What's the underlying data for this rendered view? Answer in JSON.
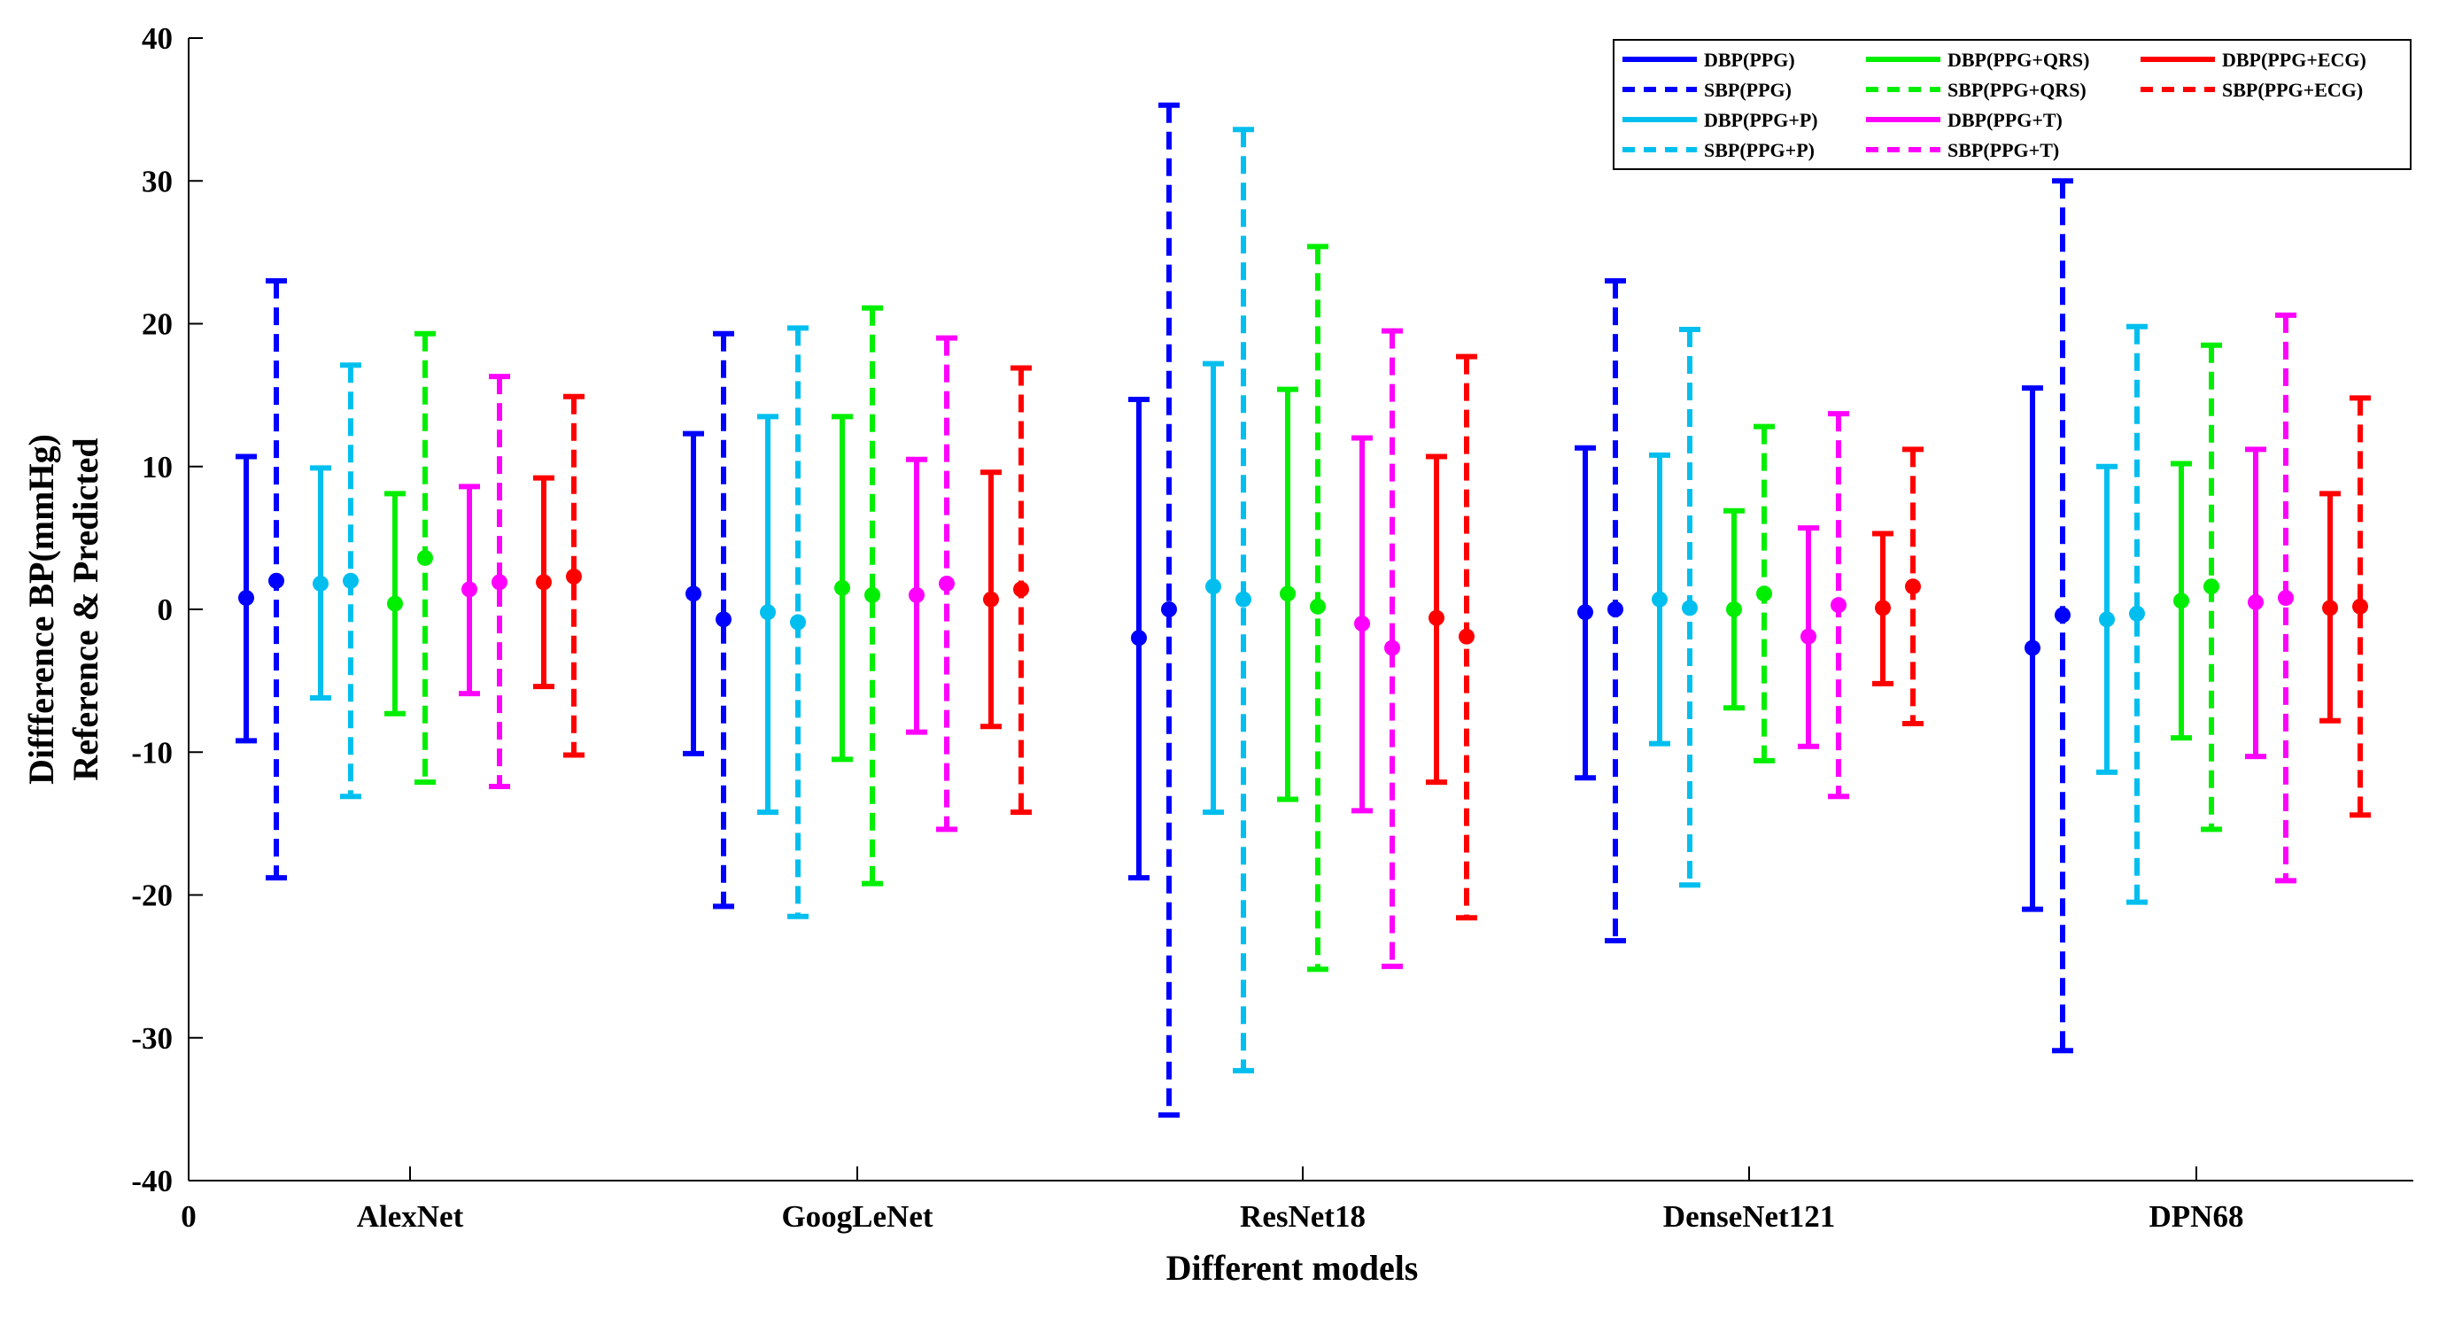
{
  "chart_data": {
    "type": "errorbar",
    "title": "",
    "xlabel": "Different models",
    "ylabel_lines": [
      "Diffference BP(mmHg)",
      "Reference & Predicted"
    ],
    "ylim": [
      -40,
      40
    ],
    "yticks": [
      -40,
      -30,
      -20,
      -10,
      0,
      10,
      20,
      30,
      40
    ],
    "x_origin_label": "0",
    "grid": false,
    "legend_position": "top-right",
    "categories": [
      "AlexNet",
      "GoogLeNet",
      "ResNet18",
      "DenseNet121",
      "DPN68"
    ],
    "series": [
      {
        "name": "DBP(PPG)",
        "color": "#0000ff",
        "dashed": false,
        "mean": [
          0.8,
          1.1,
          -2.0,
          -0.2,
          -2.7
        ],
        "upper": [
          10.7,
          12.3,
          14.7,
          11.3,
          15.5
        ],
        "lower": [
          -9.2,
          -10.1,
          -18.8,
          -11.8,
          -21.0
        ]
      },
      {
        "name": "SBP(PPG)",
        "color": "#0000ff",
        "dashed": true,
        "mean": [
          2.0,
          -0.7,
          0.0,
          0.0,
          -0.4
        ],
        "upper": [
          23.0,
          19.3,
          35.3,
          23.0,
          30.0
        ],
        "lower": [
          -18.8,
          -20.8,
          -35.4,
          -23.2,
          -30.9
        ]
      },
      {
        "name": "DBP(PPG+P)",
        "color": "#00bfef",
        "dashed": false,
        "mean": [
          1.8,
          -0.2,
          1.6,
          0.7,
          -0.7
        ],
        "upper": [
          9.9,
          13.5,
          17.2,
          10.8,
          10.0
        ],
        "lower": [
          -6.2,
          -14.2,
          -14.2,
          -9.4,
          -11.4
        ]
      },
      {
        "name": "SBP(PPG+P)",
        "color": "#00bfef",
        "dashed": true,
        "mean": [
          2.0,
          -0.9,
          0.7,
          0.1,
          -0.3
        ],
        "upper": [
          17.1,
          19.7,
          33.6,
          19.6,
          19.8
        ],
        "lower": [
          -13.1,
          -21.5,
          -32.3,
          -19.3,
          -20.5
        ]
      },
      {
        "name": "DBP(PPG+QRS)",
        "color": "#00ee00",
        "dashed": false,
        "mean": [
          0.4,
          1.5,
          1.1,
          0.0,
          0.6
        ],
        "upper": [
          8.1,
          13.5,
          15.4,
          6.9,
          10.2
        ],
        "lower": [
          -7.3,
          -10.5,
          -13.3,
          -6.9,
          -9.0
        ]
      },
      {
        "name": "SBP(PPG+QRS)",
        "color": "#00ee00",
        "dashed": true,
        "mean": [
          3.6,
          1.0,
          0.2,
          1.1,
          1.6
        ],
        "upper": [
          19.3,
          21.1,
          25.4,
          12.8,
          18.5
        ],
        "lower": [
          -12.1,
          -19.2,
          -25.2,
          -10.6,
          -15.4
        ]
      },
      {
        "name": "DBP(PPG+T)",
        "color": "#ff00ff",
        "dashed": false,
        "mean": [
          1.4,
          1.0,
          -1.0,
          -1.9,
          0.5
        ],
        "upper": [
          8.6,
          10.5,
          12.0,
          5.7,
          11.2
        ],
        "lower": [
          -5.9,
          -8.6,
          -14.1,
          -9.6,
          -10.3
        ]
      },
      {
        "name": "SBP(PPG+T)",
        "color": "#ff00ff",
        "dashed": true,
        "mean": [
          1.9,
          1.8,
          -2.7,
          0.3,
          0.8
        ],
        "upper": [
          16.3,
          19.0,
          19.5,
          13.7,
          20.6
        ],
        "lower": [
          -12.4,
          -15.4,
          -25.0,
          -13.1,
          -19.0
        ]
      },
      {
        "name": "DBP(PPG+ECG)",
        "color": "#ff0000",
        "dashed": false,
        "mean": [
          1.9,
          0.7,
          -0.6,
          0.1,
          0.1
        ],
        "upper": [
          9.2,
          9.6,
          10.7,
          5.3,
          8.1
        ],
        "lower": [
          -5.4,
          -8.2,
          -12.1,
          -5.2,
          -7.8
        ]
      },
      {
        "name": "SBP(PPG+ECG)",
        "color": "#ff0000",
        "dashed": true,
        "mean": [
          2.3,
          1.4,
          -1.9,
          1.6,
          0.2
        ],
        "upper": [
          14.9,
          16.9,
          17.7,
          11.2,
          14.8
        ],
        "lower": [
          -10.2,
          -14.2,
          -21.6,
          -8.0,
          -14.4
        ]
      }
    ]
  }
}
